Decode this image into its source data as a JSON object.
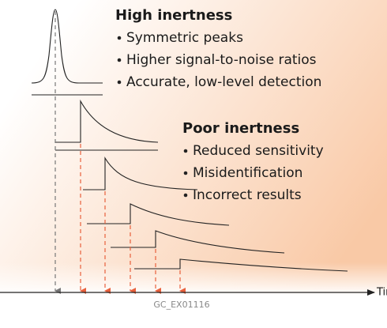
{
  "high_inertness": {
    "title": "High inertness",
    "items": [
      "Symmetric peaks",
      "Higher signal-to-noise ratios",
      "Accurate, low-level detection"
    ]
  },
  "poor_inertness": {
    "title": "Poor inertness",
    "items": [
      "Reduced sensitivity",
      "Misidentification",
      "Incorrect results"
    ]
  },
  "axis_label": "Time",
  "figure_id": "GC_EX01116"
}
